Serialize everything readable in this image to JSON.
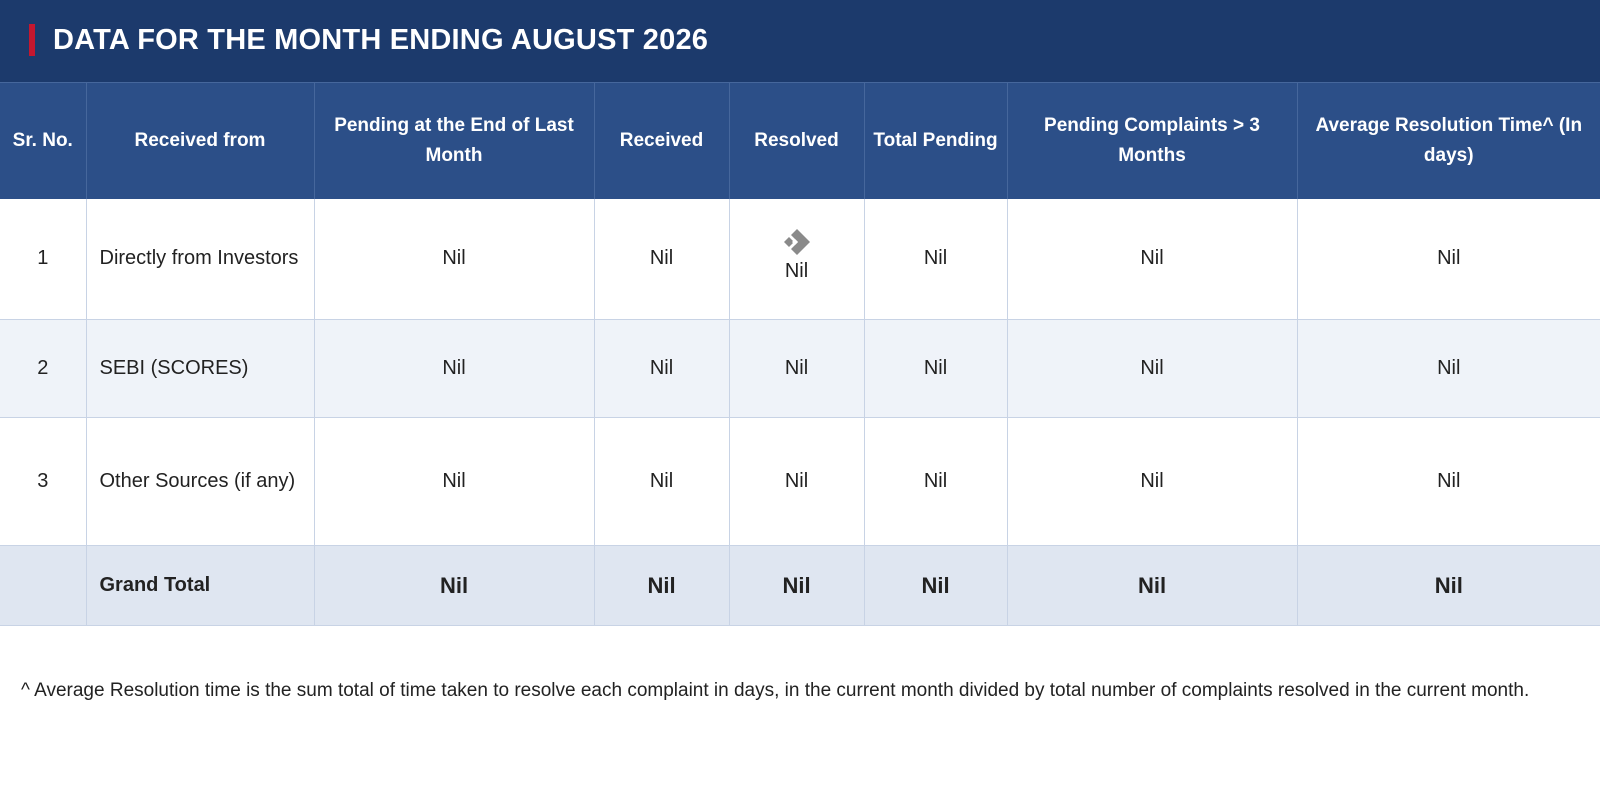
{
  "page": {
    "title": "DATA FOR THE MONTH ENDING AUGUST 2026"
  },
  "table": {
    "headers": {
      "sr_no": "Sr. No.",
      "received_from": "Received from",
      "pending_end_last_month": "Pending at the End of Last Month",
      "received": "Received",
      "resolved": "Resolved",
      "total_pending": "Total Pending",
      "pending_gt_3_months": "Pending Complaints > 3 Months",
      "avg_resolution_time": "Average Resolution Time^ (In days)"
    },
    "rows": [
      {
        "sr": "1",
        "source": "Directly from Investors",
        "pending_last": "Nil",
        "received": "Nil",
        "resolved": "Nil",
        "total_pending": "Nil",
        "pending_3m": "Nil",
        "avg_time": "Nil"
      },
      {
        "sr": "2",
        "source": "SEBI (SCORES)",
        "pending_last": "Nil",
        "received": "Nil",
        "resolved": "Nil",
        "total_pending": "Nil",
        "pending_3m": "Nil",
        "avg_time": "Nil"
      },
      {
        "sr": "3",
        "source": "Other Sources (if any)",
        "pending_last": "Nil",
        "received": "Nil",
        "resolved": "Nil",
        "total_pending": "Nil",
        "pending_3m": "Nil",
        "avg_time": "Nil"
      }
    ],
    "total": {
      "label": "Grand Total",
      "pending_last": "Nil",
      "received": "Nil",
      "resolved": "Nil",
      "total_pending": "Nil",
      "pending_3m": "Nil",
      "avg_time": "Nil"
    }
  },
  "icons": {
    "resolved_cell_mark": "diamond-arrow-icon"
  },
  "colors": {
    "header_bar": "#1c3a6c",
    "header_row": "#2c4f88",
    "accent": "#c4172f",
    "total_row": "#dfe6f1",
    "alt_row": "#eff3f9"
  },
  "footnote": "^ Average Resolution time is the sum total of time taken to resolve each complaint in days, in the current month divided by total number of complaints resolved in the current month."
}
